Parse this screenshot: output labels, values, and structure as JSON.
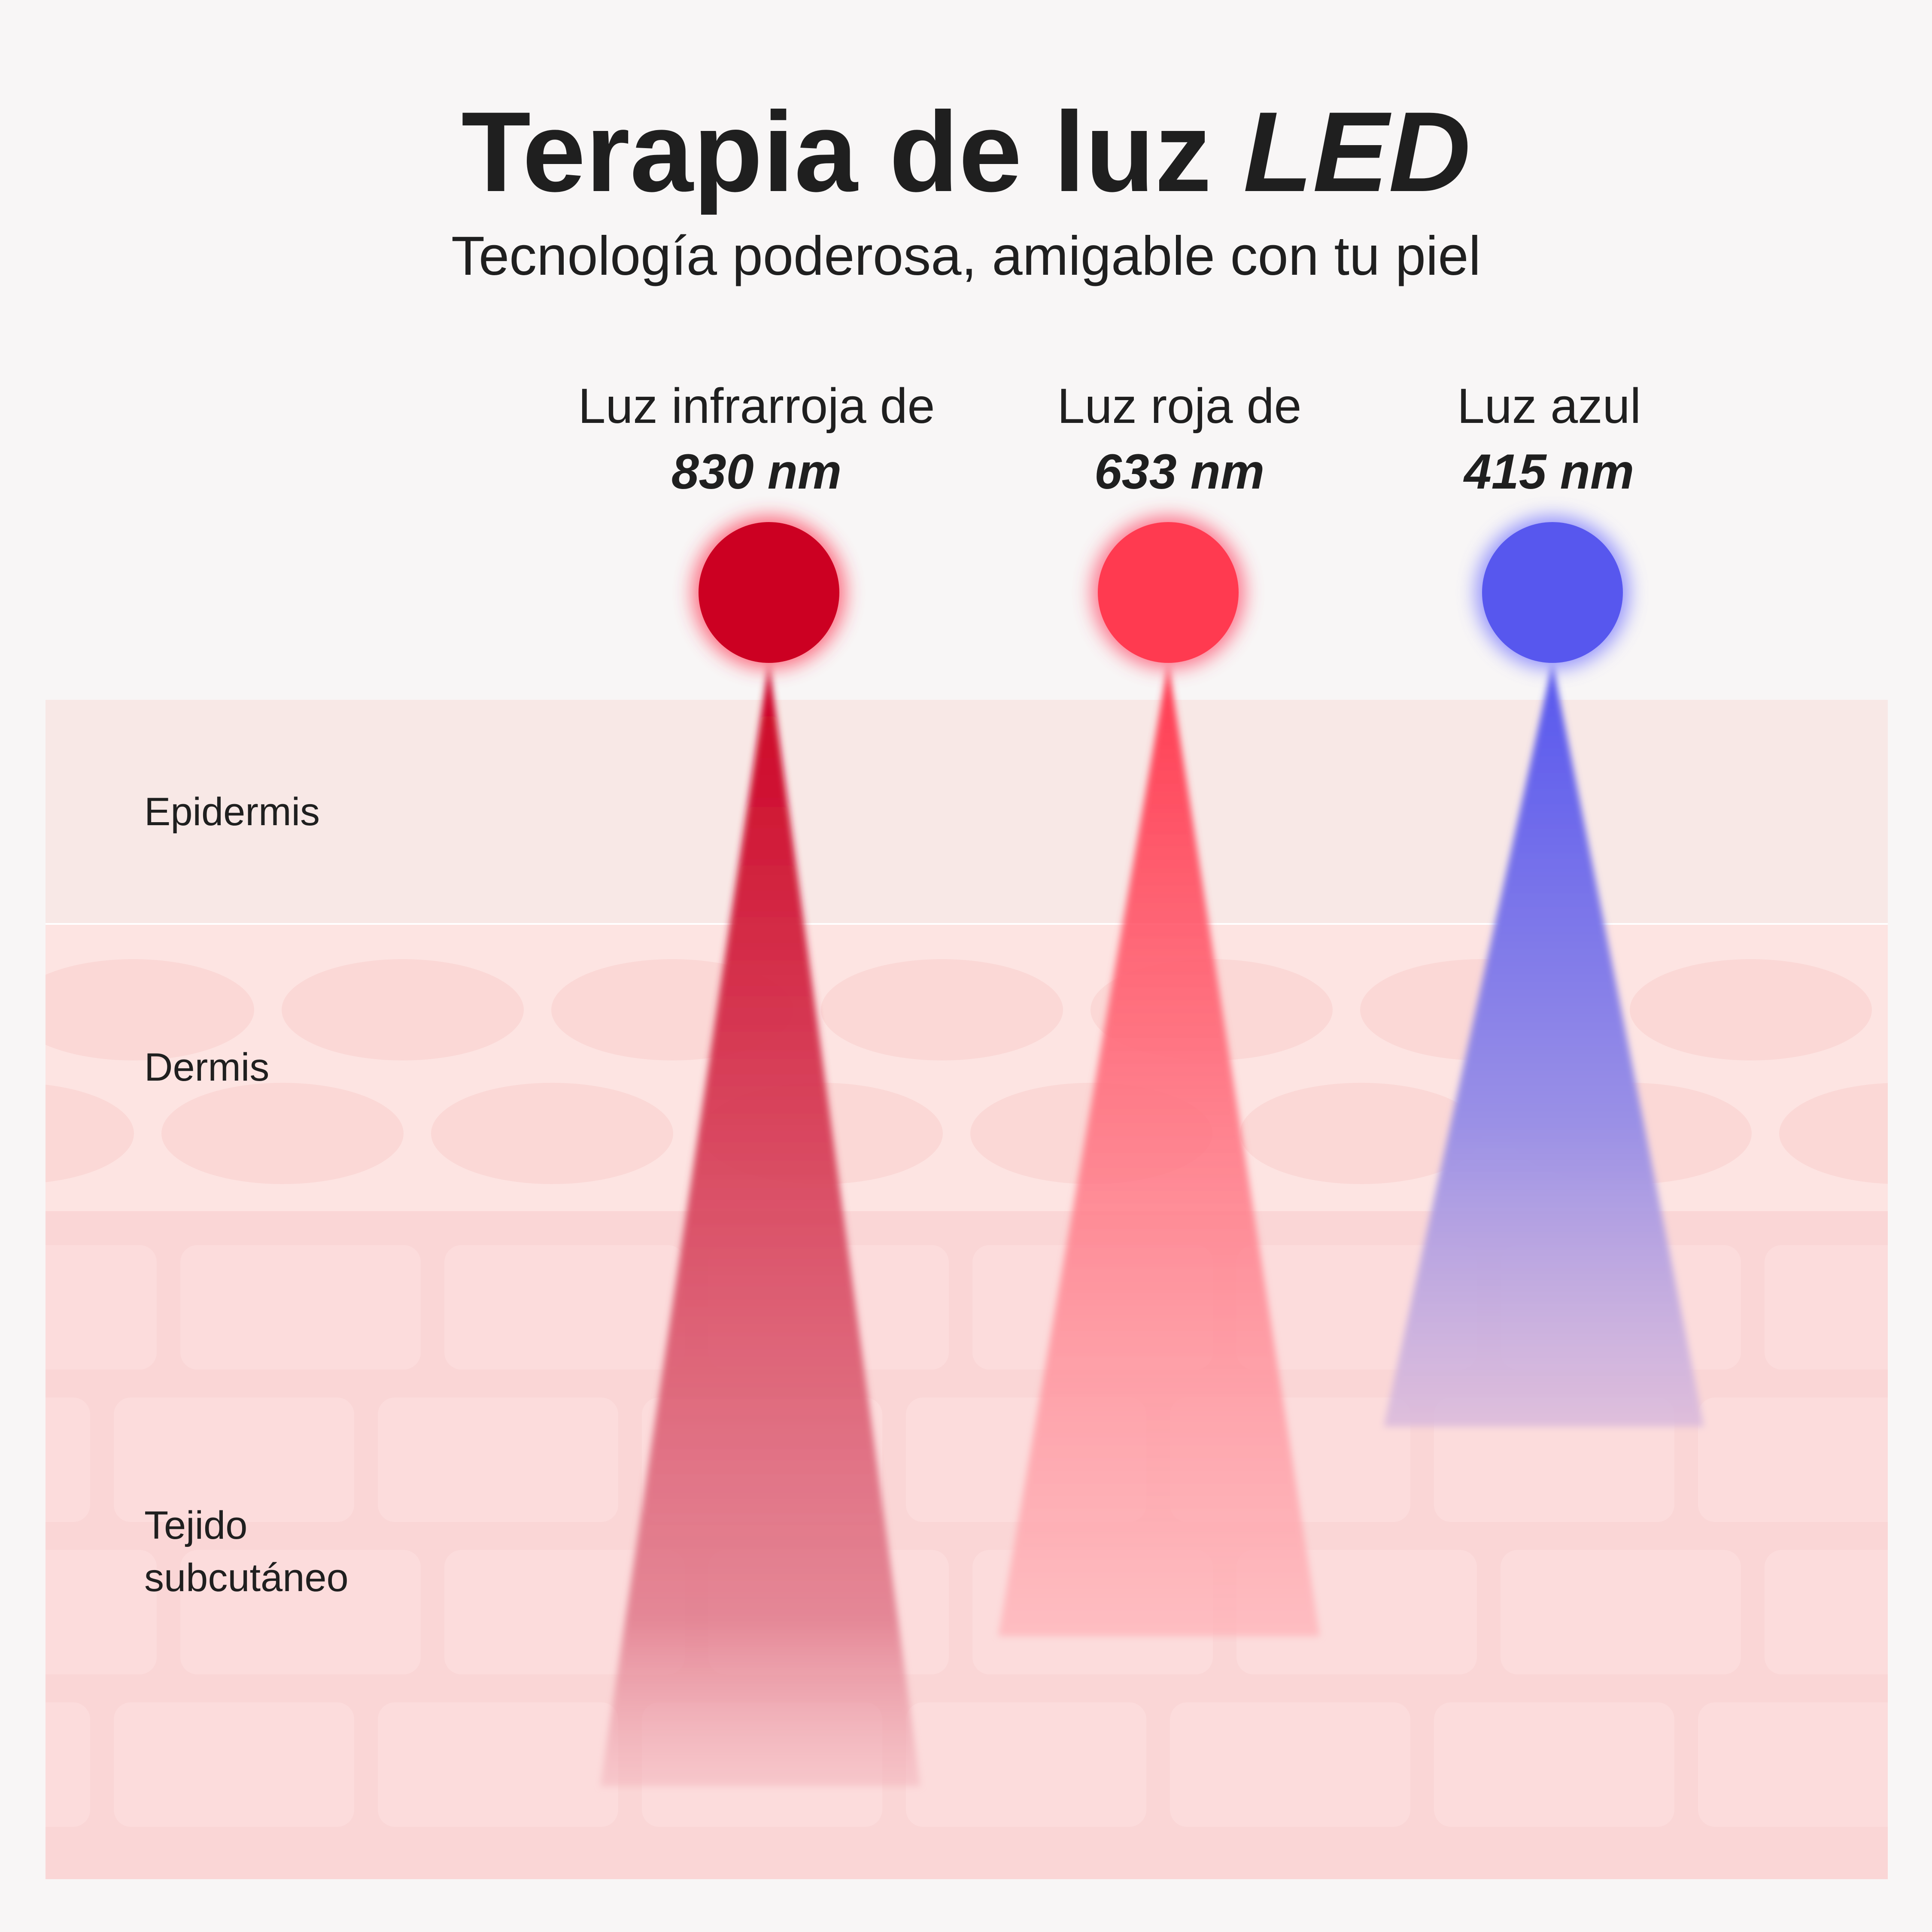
{
  "header": {
    "title": "Terapia de luz",
    "title_emphasis": "LED",
    "subtitle": "Tecnología poderosa, amigable con tu piel"
  },
  "lights": [
    {
      "label": "Luz infrarroja de",
      "wavelength": "830 nm"
    },
    {
      "label": "Luz roja de",
      "wavelength": "633 nm"
    },
    {
      "label": "Luz azul",
      "wavelength": "415 nm"
    }
  ],
  "layers": [
    "Epidermis",
    "Dermis",
    "Tejido subcutáneo"
  ]
}
